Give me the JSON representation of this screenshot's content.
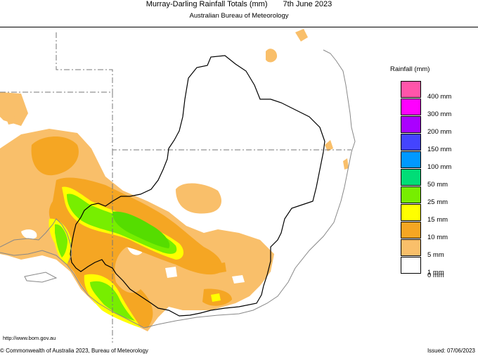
{
  "header": {
    "title": "Murray-Darling Rainfall Totals (mm)",
    "date": "7th June 2023",
    "subtitle": "Australian Bureau of Meteorology"
  },
  "legend": {
    "title": "Rainfall (mm)",
    "items": [
      {
        "label": "400 mm",
        "color": "#ff55aa"
      },
      {
        "label": "300 mm",
        "color": "#ff00ff"
      },
      {
        "label": "200 mm",
        "color": "#aa00ff"
      },
      {
        "label": "150 mm",
        "color": "#4444ff"
      },
      {
        "label": "100 mm",
        "color": "#0099ff"
      },
      {
        "label": "50 mm",
        "color": "#00dd77"
      },
      {
        "label": "25 mm",
        "color": "#77ee00"
      },
      {
        "label": "15 mm",
        "color": "#ffff00"
      },
      {
        "label": "10 mm",
        "color": "#f5a623"
      },
      {
        "label": "5 mm",
        "color": "#f9bf6a"
      },
      {
        "label": "1 mm",
        "color": "#ffffff"
      }
    ],
    "zero_label": "0 mm"
  },
  "footer": {
    "url": "http://www.bom.gov.au",
    "copyright": "© Commonwealth of Australia 2023, Bureau of Meteorology",
    "issued": "Issued: 07/06/2023"
  }
}
